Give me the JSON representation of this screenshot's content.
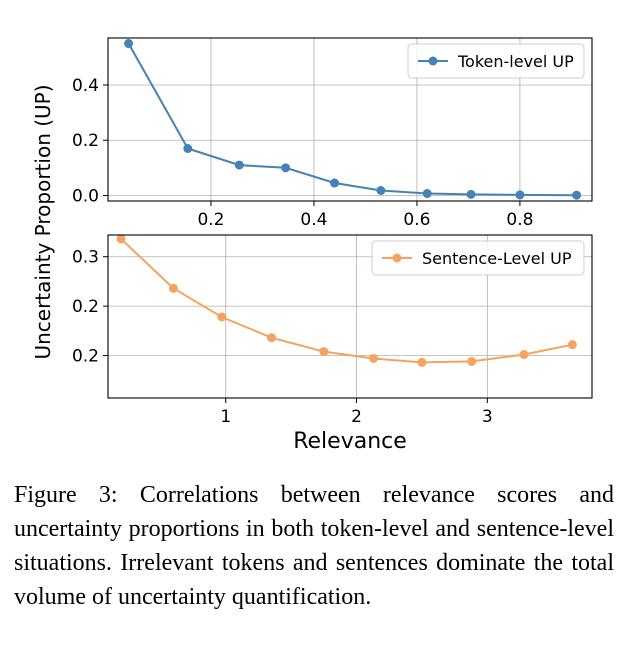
{
  "chart_data": [
    {
      "type": "line",
      "ylabel": "Uncertainty Proportion (UP)",
      "xticks": [
        "0.2",
        "0.4",
        "0.6",
        "0.8"
      ],
      "yticks": [
        "0.0",
        "0.2",
        "0.4"
      ],
      "xlim": [
        0.0,
        0.94
      ],
      "ylim": [
        -0.02,
        0.57
      ],
      "grid": true,
      "legend_position": "upper right",
      "series": [
        {
          "name": "Token-level UP",
          "color": "#4682b4",
          "x": [
            0.04,
            0.155,
            0.255,
            0.345,
            0.44,
            0.53,
            0.62,
            0.705,
            0.8,
            0.91
          ],
          "y": [
            0.55,
            0.17,
            0.11,
            0.1,
            0.045,
            0.018,
            0.007,
            0.004,
            0.002,
            0.001
          ]
        }
      ]
    },
    {
      "type": "line",
      "xlabel": "Relevance",
      "xticks": [
        "1",
        "2",
        "3"
      ],
      "yticks": [
        "0.2",
        "0.2",
        "0.3"
      ],
      "xlim": [
        0.1,
        3.8
      ],
      "ylim": [
        0.157,
        0.322
      ],
      "grid": true,
      "legend_position": "upper right",
      "series": [
        {
          "name": "Sentence-Level UP",
          "color": "#f4a460",
          "x": [
            0.2,
            0.6,
            0.97,
            1.35,
            1.75,
            2.13,
            2.5,
            2.88,
            3.28,
            3.65
          ],
          "y": [
            0.318,
            0.268,
            0.239,
            0.218,
            0.204,
            0.197,
            0.193,
            0.194,
            0.201,
            0.211
          ]
        }
      ]
    }
  ],
  "caption": "Figure 3: Correlations between relevance scores and uncertainty proportions in both token-level and sentence-level situations. Irrelevant tokens and sentences dominate the total volume of uncertainty quantification."
}
